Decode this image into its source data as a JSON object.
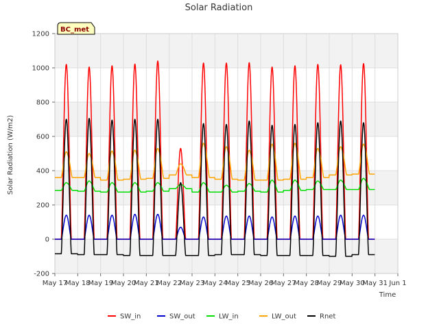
{
  "chart_data": {
    "type": "line",
    "title": "Solar Radiation",
    "badge": "BC_met",
    "xlabel": "Time",
    "ylabel": "Solar Radiation (W/m2)",
    "ylim": [
      -200,
      1200
    ],
    "xlim": [
      17,
      32
    ],
    "y_ticks": [
      -200,
      0,
      200,
      400,
      600,
      800,
      1000,
      1200
    ],
    "x_ticks": [
      {
        "value": 17,
        "label": "May 17"
      },
      {
        "value": 18,
        "label": "May 18"
      },
      {
        "value": 19,
        "label": "May 19"
      },
      {
        "value": 20,
        "label": "May 20"
      },
      {
        "value": 21,
        "label": "May 21"
      },
      {
        "value": 22,
        "label": "May 22"
      },
      {
        "value": 23,
        "label": "May 23"
      },
      {
        "value": 24,
        "label": "May 24"
      },
      {
        "value": 25,
        "label": "May 25"
      },
      {
        "value": 26,
        "label": "May 26"
      },
      {
        "value": 27,
        "label": "May 27"
      },
      {
        "value": 28,
        "label": "May 28"
      },
      {
        "value": 29,
        "label": "May 29"
      },
      {
        "value": 30,
        "label": "May 30"
      },
      {
        "value": 31,
        "label": "May 31"
      },
      {
        "value": 32,
        "label": "Jun 1"
      }
    ],
    "grid": true,
    "background_bands": "alternating light gray",
    "legend_position": "bottom",
    "days": [
      17.5,
      18.5,
      19.5,
      20.5,
      21.5,
      22.5,
      23.5,
      24.5,
      25.5,
      26.5,
      27.5,
      28.5,
      29.5,
      30.5
    ],
    "series": [
      {
        "name": "SW_in",
        "color": "#ff0000",
        "daily_peak": [
          1020,
          1005,
          1012,
          1022,
          1040,
          530,
          1028,
          1028,
          1030,
          1005,
          1012,
          1020,
          1018,
          1025
        ]
      },
      {
        "name": "SW_out",
        "color": "#0000cc",
        "daily_peak": [
          140,
          140,
          140,
          145,
          145,
          70,
          130,
          135,
          135,
          130,
          135,
          135,
          140,
          140
        ]
      },
      {
        "name": "LW_in",
        "color": "#00dd00",
        "daily_peak": [
          330,
          340,
          330,
          330,
          330,
          320,
          330,
          315,
          325,
          345,
          345,
          340,
          345,
          355
        ],
        "daily_min": [
          285,
          280,
          275,
          275,
          280,
          295,
          275,
          275,
          280,
          275,
          285,
          290,
          290,
          290
        ]
      },
      {
        "name": "LW_out",
        "color": "#ffa500",
        "daily_peak": [
          510,
          500,
          515,
          520,
          530,
          440,
          560,
          540,
          520,
          555,
          560,
          530,
          540,
          555
        ],
        "daily_min": [
          360,
          360,
          345,
          350,
          355,
          375,
          360,
          350,
          345,
          345,
          350,
          360,
          375,
          380
        ]
      },
      {
        "name": "Rnet",
        "color": "#000000",
        "daily_peak": [
          700,
          705,
          695,
          700,
          700,
          330,
          675,
          670,
          690,
          665,
          670,
          680,
          690,
          680
        ],
        "daily_min": [
          -85,
          -90,
          -90,
          -95,
          -95,
          -95,
          -95,
          -90,
          -90,
          -95,
          -95,
          -95,
          -100,
          -90
        ]
      }
    ]
  }
}
